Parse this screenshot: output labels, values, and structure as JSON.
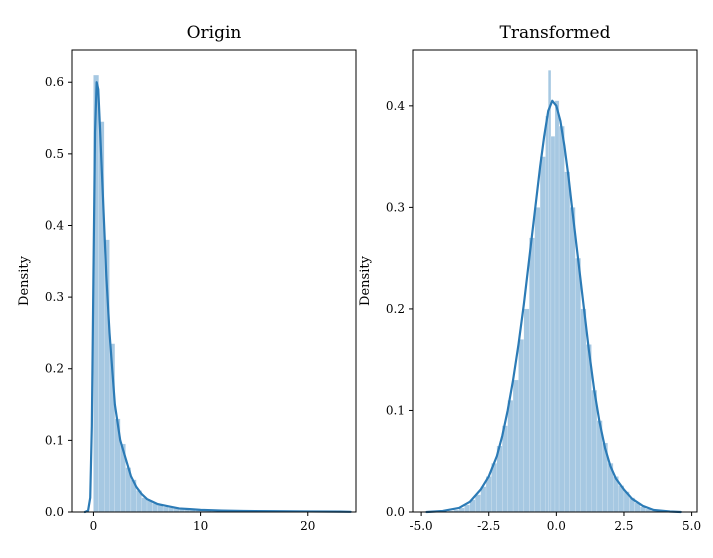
{
  "chart_data": [
    {
      "type": "histogram",
      "title": "Origin",
      "xlabel": "",
      "ylabel": "Density",
      "xlim": [
        -2,
        24.5
      ],
      "ylim": [
        0,
        0.645
      ],
      "xticks": [
        0,
        10,
        20
      ],
      "xtick_labels": [
        "0",
        "10",
        "20"
      ],
      "yticks": [
        0.0,
        0.1,
        0.2,
        0.3,
        0.4,
        0.5,
        0.6
      ],
      "ytick_labels": [
        "0.0",
        "0.1",
        "0.2",
        "0.3",
        "0.4",
        "0.5",
        "0.6"
      ],
      "grid": false,
      "colors": {
        "bars": "#a6c8e2",
        "kde": "#2c7bb6"
      },
      "bins": [
        {
          "x0": 0.0,
          "x1": 0.5,
          "density": 0.61
        },
        {
          "x0": 0.5,
          "x1": 1.0,
          "density": 0.545
        },
        {
          "x0": 1.0,
          "x1": 1.5,
          "density": 0.38
        },
        {
          "x0": 1.5,
          "x1": 2.0,
          "density": 0.235
        },
        {
          "x0": 2.0,
          "x1": 2.5,
          "density": 0.13
        },
        {
          "x0": 2.5,
          "x1": 3.0,
          "density": 0.095
        },
        {
          "x0": 3.0,
          "x1": 3.5,
          "density": 0.062
        },
        {
          "x0": 3.5,
          "x1": 4.0,
          "density": 0.045
        },
        {
          "x0": 4.0,
          "x1": 4.5,
          "density": 0.03
        },
        {
          "x0": 4.5,
          "x1": 5.0,
          "density": 0.02
        },
        {
          "x0": 5.0,
          "x1": 5.5,
          "density": 0.016
        },
        {
          "x0": 5.5,
          "x1": 6.0,
          "density": 0.012
        },
        {
          "x0": 6.0,
          "x1": 6.5,
          "density": 0.009
        },
        {
          "x0": 6.5,
          "x1": 7.0,
          "density": 0.007
        },
        {
          "x0": 7.0,
          "x1": 7.5,
          "density": 0.006
        },
        {
          "x0": 7.5,
          "x1": 8.0,
          "density": 0.005
        },
        {
          "x0": 8.0,
          "x1": 8.5,
          "density": 0.004
        },
        {
          "x0": 8.5,
          "x1": 9.0,
          "density": 0.003
        },
        {
          "x0": 9.0,
          "x1": 9.5,
          "density": 0.0025
        },
        {
          "x0": 9.5,
          "x1": 10.0,
          "density": 0.002
        },
        {
          "x0": 10.0,
          "x1": 11.0,
          "density": 0.0015
        },
        {
          "x0": 11.0,
          "x1": 12.0,
          "density": 0.001
        },
        {
          "x0": 12.0,
          "x1": 14.0,
          "density": 0.0008
        },
        {
          "x0": 14.0,
          "x1": 17.0,
          "density": 0.0005
        },
        {
          "x0": 17.0,
          "x1": 20.0,
          "density": 0.0004
        },
        {
          "x0": 20.0,
          "x1": 23.0,
          "density": 0.0003
        }
      ],
      "kde": [
        [
          -0.8,
          0.0
        ],
        [
          -0.5,
          0.002
        ],
        [
          -0.3,
          0.02
        ],
        [
          -0.15,
          0.12
        ],
        [
          0.0,
          0.33
        ],
        [
          0.15,
          0.53
        ],
        [
          0.3,
          0.6
        ],
        [
          0.45,
          0.59
        ],
        [
          0.6,
          0.54
        ],
        [
          0.8,
          0.47
        ],
        [
          1.0,
          0.4
        ],
        [
          1.2,
          0.33
        ],
        [
          1.5,
          0.25
        ],
        [
          1.8,
          0.19
        ],
        [
          2.0,
          0.15
        ],
        [
          2.5,
          0.1
        ],
        [
          3.0,
          0.075
        ],
        [
          3.5,
          0.05
        ],
        [
          4.0,
          0.035
        ],
        [
          4.5,
          0.025
        ],
        [
          5.0,
          0.018
        ],
        [
          6.0,
          0.011
        ],
        [
          7.0,
          0.008
        ],
        [
          8.0,
          0.005
        ],
        [
          9.0,
          0.004
        ],
        [
          10.0,
          0.003
        ],
        [
          12.0,
          0.002
        ],
        [
          14.0,
          0.0015
        ],
        [
          17.0,
          0.001
        ],
        [
          20.0,
          0.0008
        ],
        [
          23.0,
          0.0005
        ],
        [
          24.0,
          0.0003
        ]
      ]
    },
    {
      "type": "histogram",
      "title": "Transformed",
      "xlabel": "",
      "ylabel": "Density",
      "xlim": [
        -5.3,
        5.2
      ],
      "ylim": [
        0,
        0.455
      ],
      "xticks": [
        -5.0,
        -2.5,
        0.0,
        2.5,
        5.0
      ],
      "xtick_labels": [
        "-5.0",
        "-2.5",
        "0.0",
        "2.5",
        "5.0"
      ],
      "yticks": [
        0.0,
        0.1,
        0.2,
        0.3,
        0.4
      ],
      "ytick_labels": [
        "0.0",
        "0.1",
        "0.2",
        "0.3",
        "0.4"
      ],
      "grid": false,
      "colors": {
        "bars": "#a6c8e2",
        "kde": "#2c7bb6"
      },
      "bins": [
        {
          "x0": -4.0,
          "x1": -3.8,
          "density": 0.001
        },
        {
          "x0": -3.8,
          "x1": -3.6,
          "density": 0.002
        },
        {
          "x0": -3.6,
          "x1": -3.4,
          "density": 0.004
        },
        {
          "x0": -3.4,
          "x1": -3.2,
          "density": 0.007
        },
        {
          "x0": -3.2,
          "x1": -3.0,
          "density": 0.012
        },
        {
          "x0": -3.0,
          "x1": -2.8,
          "density": 0.017
        },
        {
          "x0": -2.8,
          "x1": -2.6,
          "density": 0.025
        },
        {
          "x0": -2.6,
          "x1": -2.4,
          "density": 0.035
        },
        {
          "x0": -2.4,
          "x1": -2.2,
          "density": 0.048
        },
        {
          "x0": -2.2,
          "x1": -2.0,
          "density": 0.065
        },
        {
          "x0": -2.0,
          "x1": -1.8,
          "density": 0.085
        },
        {
          "x0": -1.8,
          "x1": -1.6,
          "density": 0.11
        },
        {
          "x0": -1.6,
          "x1": -1.4,
          "density": 0.13
        },
        {
          "x0": -1.4,
          "x1": -1.2,
          "density": 0.17
        },
        {
          "x0": -1.2,
          "x1": -1.0,
          "density": 0.2
        },
        {
          "x0": -1.0,
          "x1": -0.8,
          "density": 0.27
        },
        {
          "x0": -0.8,
          "x1": -0.6,
          "density": 0.3
        },
        {
          "x0": -0.6,
          "x1": -0.4,
          "density": 0.35
        },
        {
          "x0": -0.4,
          "x1": -0.3,
          "density": 0.39
        },
        {
          "x0": -0.3,
          "x1": -0.2,
          "density": 0.435
        },
        {
          "x0": -0.2,
          "x1": -0.05,
          "density": 0.37
        },
        {
          "x0": -0.05,
          "x1": 0.1,
          "density": 0.405
        },
        {
          "x0": 0.1,
          "x1": 0.3,
          "density": 0.38
        },
        {
          "x0": 0.3,
          "x1": 0.5,
          "density": 0.335
        },
        {
          "x0": 0.5,
          "x1": 0.7,
          "density": 0.3
        },
        {
          "x0": 0.7,
          "x1": 0.9,
          "density": 0.25
        },
        {
          "x0": 0.9,
          "x1": 1.1,
          "density": 0.2
        },
        {
          "x0": 1.1,
          "x1": 1.3,
          "density": 0.165
        },
        {
          "x0": 1.3,
          "x1": 1.5,
          "density": 0.12
        },
        {
          "x0": 1.5,
          "x1": 1.7,
          "density": 0.09
        },
        {
          "x0": 1.7,
          "x1": 1.9,
          "density": 0.068
        },
        {
          "x0": 1.9,
          "x1": 2.1,
          "density": 0.048
        },
        {
          "x0": 2.1,
          "x1": 2.3,
          "density": 0.035
        },
        {
          "x0": 2.3,
          "x1": 2.5,
          "density": 0.026
        },
        {
          "x0": 2.5,
          "x1": 2.7,
          "density": 0.02
        },
        {
          "x0": 2.7,
          "x1": 2.9,
          "density": 0.014
        },
        {
          "x0": 2.9,
          "x1": 3.1,
          "density": 0.009
        },
        {
          "x0": 3.1,
          "x1": 3.3,
          "density": 0.005
        },
        {
          "x0": 3.3,
          "x1": 3.5,
          "density": 0.003
        },
        {
          "x0": 3.5,
          "x1": 3.8,
          "density": 0.0015
        },
        {
          "x0": 3.8,
          "x1": 4.2,
          "density": 0.0008
        }
      ],
      "kde": [
        [
          -4.8,
          0.0
        ],
        [
          -4.2,
          0.001
        ],
        [
          -3.6,
          0.004
        ],
        [
          -3.2,
          0.01
        ],
        [
          -2.8,
          0.022
        ],
        [
          -2.5,
          0.035
        ],
        [
          -2.2,
          0.055
        ],
        [
          -2.0,
          0.075
        ],
        [
          -1.8,
          0.1
        ],
        [
          -1.6,
          0.13
        ],
        [
          -1.4,
          0.165
        ],
        [
          -1.2,
          0.205
        ],
        [
          -1.0,
          0.25
        ],
        [
          -0.8,
          0.295
        ],
        [
          -0.6,
          0.34
        ],
        [
          -0.45,
          0.37
        ],
        [
          -0.3,
          0.395
        ],
        [
          -0.15,
          0.405
        ],
        [
          0.0,
          0.4
        ],
        [
          0.15,
          0.385
        ],
        [
          0.3,
          0.36
        ],
        [
          0.45,
          0.33
        ],
        [
          0.6,
          0.295
        ],
        [
          0.8,
          0.25
        ],
        [
          1.0,
          0.205
        ],
        [
          1.2,
          0.16
        ],
        [
          1.4,
          0.12
        ],
        [
          1.6,
          0.088
        ],
        [
          1.8,
          0.063
        ],
        [
          2.0,
          0.045
        ],
        [
          2.2,
          0.033
        ],
        [
          2.5,
          0.022
        ],
        [
          2.8,
          0.013
        ],
        [
          3.2,
          0.006
        ],
        [
          3.6,
          0.002
        ],
        [
          4.2,
          0.0005
        ],
        [
          4.6,
          0.0
        ]
      ]
    }
  ]
}
